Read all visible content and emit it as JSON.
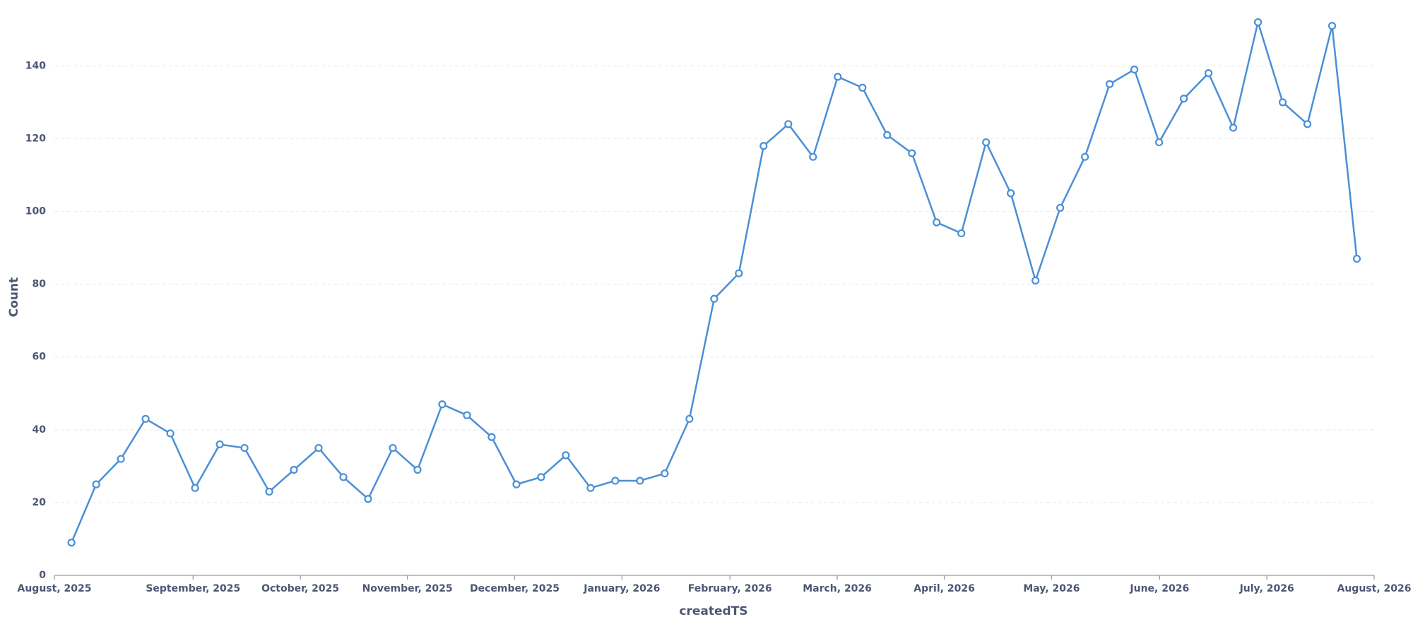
{
  "chart_data": {
    "type": "line",
    "x_label": "createdTS",
    "y_label": "Count",
    "categories": [
      null,
      null,
      null,
      null,
      null,
      null,
      null,
      null,
      null,
      null,
      null,
      null,
      null,
      null,
      null,
      null,
      null,
      null,
      null,
      null,
      null,
      null,
      null,
      null,
      null,
      null,
      null,
      null,
      null,
      null,
      null,
      null,
      null,
      null,
      null,
      null,
      null,
      null,
      null,
      null,
      null,
      null,
      null,
      null,
      null,
      null,
      null,
      null,
      null,
      null,
      null,
      null,
      null
    ],
    "series": [
      {
        "name": "Count",
        "color": "#4a8fd6",
        "values": [
          9,
          25,
          32,
          43,
          39,
          24,
          36,
          35,
          23,
          29,
          35,
          27,
          21,
          35,
          29,
          47,
          44,
          38,
          25,
          27,
          33,
          24,
          26,
          26,
          28,
          43,
          76,
          83,
          118,
          124,
          115,
          137,
          134,
          121,
          116,
          97,
          94,
          119,
          105,
          81,
          101,
          115,
          135,
          139,
          119,
          131,
          138,
          123,
          152,
          130,
          124,
          151,
          87
        ]
      }
    ],
    "xlim": [
      -0.69,
      52.7
    ],
    "xticks": [
      {
        "value": -0.69,
        "label": "August, 2025"
      },
      {
        "value": 4.92,
        "label": "September, 2025"
      },
      {
        "value": 9.26,
        "label": "October, 2025"
      },
      {
        "value": 13.59,
        "label": "November, 2025"
      },
      {
        "value": 17.93,
        "label": "December, 2025"
      },
      {
        "value": 22.27,
        "label": "January, 2026"
      },
      {
        "value": 26.64,
        "label": "February, 2026"
      },
      {
        "value": 30.98,
        "label": "March, 2026"
      },
      {
        "value": 35.31,
        "label": "April, 2026"
      },
      {
        "value": 39.65,
        "label": "May, 2026"
      },
      {
        "value": 44.02,
        "label": "June, 2026"
      },
      {
        "value": 48.36,
        "label": "July, 2026"
      },
      {
        "value": 52.7,
        "label": "August, 2026"
      }
    ],
    "ylim": [
      0,
      155
    ],
    "yticks": [
      0,
      20,
      40,
      60,
      80,
      100,
      120,
      140
    ],
    "grid": true
  }
}
